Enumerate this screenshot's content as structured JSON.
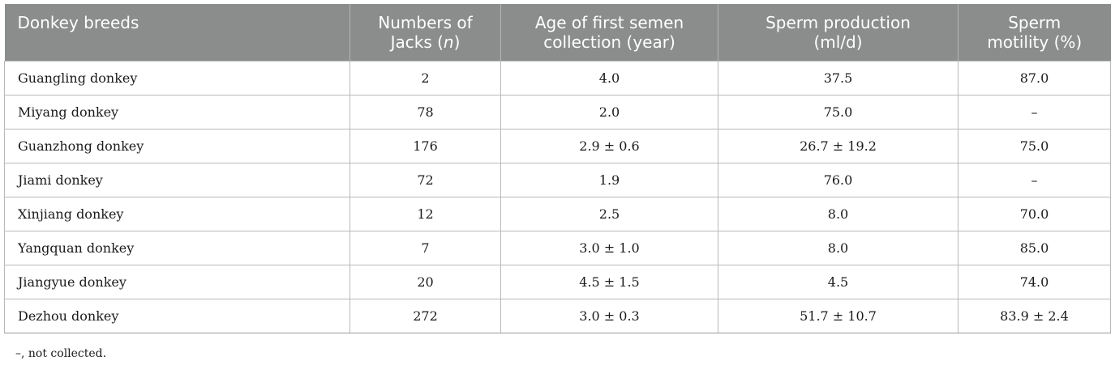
{
  "table": {
    "headers": [
      {
        "lines": [
          "Donkey breeds"
        ]
      },
      {
        "lines": [
          "Numbers of",
          "Jacks ("
        ],
        "italic": "n",
        "after": ")"
      },
      {
        "lines": [
          "Age of first semen",
          "collection (year)"
        ]
      },
      {
        "lines": [
          "Sperm production",
          "(ml/d)"
        ]
      },
      {
        "lines": [
          "Sperm",
          "motility (%)"
        ]
      }
    ],
    "rows": [
      [
        "Guangling donkey",
        "2",
        "4.0",
        "37.5",
        "87.0"
      ],
      [
        "Miyang donkey",
        "78",
        "2.0",
        "75.0",
        "–"
      ],
      [
        "Guanzhong donkey",
        "176",
        "2.9 ± 0.6",
        "26.7 ± 19.2",
        "75.0"
      ],
      [
        "Jiami donkey",
        "72",
        "1.9",
        "76.0",
        "–"
      ],
      [
        "Xinjiang donkey",
        "12",
        "2.5",
        "8.0",
        "70.0"
      ],
      [
        "Yangquan donkey",
        "7",
        "3.0 ± 1.0",
        "8.0",
        "85.0"
      ],
      [
        "Jiangyue donkey",
        "20",
        "4.5 ± 1.5",
        "4.5",
        "74.0"
      ],
      [
        "Dezhou donkey",
        "272",
        "3.0 ± 0.3",
        "51.7 ± 10.7",
        "83.9 ± 2.4"
      ]
    ]
  },
  "footnote": "–, not collected.",
  "colors": {
    "header_bg": "#8a8d8c",
    "header_text": "#ffffff",
    "border": "#b9b9b9"
  }
}
